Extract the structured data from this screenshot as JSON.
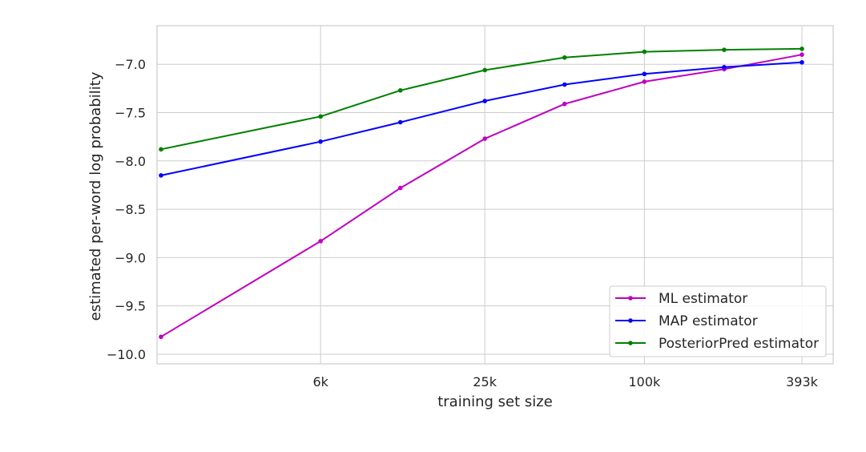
{
  "chart_data": {
    "type": "line",
    "xlabel": "training set size",
    "ylabel": "estimated per-word log probability",
    "x_scale": "log2",
    "x_ticks": [
      6000,
      25000,
      100000,
      393000
    ],
    "x_tick_labels": [
      "6k",
      "25k",
      "100k",
      "393k"
    ],
    "x": [
      1500,
      6000,
      12000,
      25000,
      50000,
      100000,
      200000,
      393000
    ],
    "xlim": [
      1500,
      393000
    ],
    "ylim": [
      -10.1,
      -6.6
    ],
    "y_ticks": [
      -10.0,
      -9.5,
      -9.0,
      -8.5,
      -8.0,
      -7.5,
      -7.0
    ],
    "y_tick_labels": [
      "−10.0",
      "−9.5",
      "−9.0",
      "−8.5",
      "−8.0",
      "−7.5",
      "−7.0"
    ],
    "grid": true,
    "legend_position": "lower-right",
    "series": [
      {
        "name": "ML estimator",
        "color": "#bf00bf",
        "values": [
          -9.82,
          -8.83,
          -8.28,
          -7.77,
          -7.41,
          -7.18,
          -7.05,
          -6.9
        ]
      },
      {
        "name": "MAP estimator",
        "color": "#0000ff",
        "values": [
          -8.15,
          -7.8,
          -7.6,
          -7.38,
          -7.21,
          -7.1,
          -7.03,
          -6.98
        ]
      },
      {
        "name": "PosteriorPred estimator",
        "color": "#008000",
        "values": [
          -7.88,
          -7.54,
          -7.27,
          -7.06,
          -6.93,
          -6.87,
          -6.85,
          -6.84
        ]
      }
    ]
  }
}
